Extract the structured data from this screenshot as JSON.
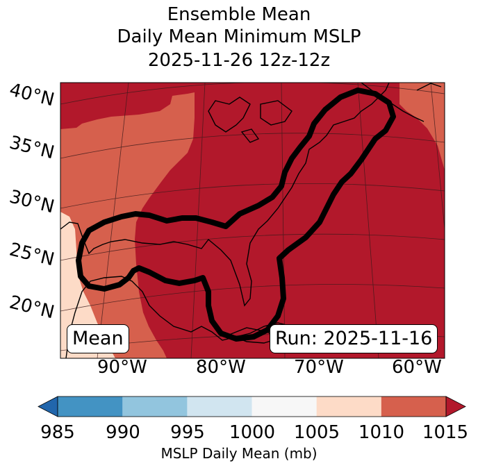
{
  "title": {
    "line1": "Ensemble Mean",
    "line2": "Daily Mean Minimum MSLP",
    "line3": "2025-11-26 12z-12z"
  },
  "map": {
    "lat_labels": [
      "40°N",
      "35°N",
      "30°N",
      "25°N",
      "20°N"
    ],
    "lon_labels": [
      "90°W",
      "80°W",
      "70°W",
      "60°W"
    ],
    "badge_left": "Mean",
    "badge_right": "Run: 2025-11-16",
    "colors": {
      "c1005": "#fddbc7",
      "c1010": "#d6604d",
      "c1015": "#b2182b",
      "contour": "#000000",
      "coast": "#000000"
    }
  },
  "colorbar": {
    "ticks": [
      "985",
      "990",
      "995",
      "1000",
      "1005",
      "1010",
      "1015"
    ],
    "label": "MSLP Daily Mean (mb)",
    "bins": [
      {
        "range": "<985",
        "color": "#2166ac"
      },
      {
        "range": "985-990",
        "color": "#4393c3"
      },
      {
        "range": "990-995",
        "color": "#92c5de"
      },
      {
        "range": "995-1000",
        "color": "#d1e5f0"
      },
      {
        "range": "1000-1005",
        "color": "#f7f7f7"
      },
      {
        "range": "1005-1010",
        "color": "#fddbc7"
      },
      {
        "range": "1010-1015",
        "color": "#d6604d"
      },
      {
        "range": ">1015",
        "color": "#b2182b"
      }
    ]
  }
}
